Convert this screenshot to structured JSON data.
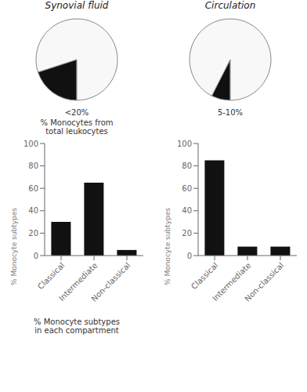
{
  "chart_data": [
    {
      "type": "pie",
      "title": "Synovial fluid",
      "values": [
        20,
        80
      ],
      "colors": [
        "#111111",
        "#f8f8f8"
      ],
      "annotations": [
        "<20%",
        "% Monocytes from\ntotal leukocytes"
      ]
    },
    {
      "type": "pie",
      "title": "Circulation",
      "values": [
        7.5,
        92.5
      ],
      "colors": [
        "#111111",
        "#f8f8f8"
      ],
      "annotations": [
        "5-10%"
      ]
    },
    {
      "type": "bar",
      "categories": [
        "Classical",
        "Intermediate",
        "Non-classical"
      ],
      "values": [
        30,
        65,
        5
      ],
      "color": "#111111",
      "ylim": [
        0,
        100
      ],
      "yticks": [
        0,
        20,
        40,
        60,
        80,
        100
      ],
      "ylabel": "% Monocyte subtypes",
      "grid": false,
      "annotations": [
        "% Monocyte subtypes\nin each compartment"
      ]
    },
    {
      "type": "bar",
      "categories": [
        "Classical",
        "Intermediate",
        "Non-classical"
      ],
      "values": [
        85,
        8,
        8
      ],
      "color": "#111111",
      "ylim": [
        0,
        100
      ],
      "yticks": [
        0,
        20,
        40,
        60,
        80,
        100
      ],
      "ylabel": "% Monocyte subtypes",
      "grid": false
    }
  ]
}
